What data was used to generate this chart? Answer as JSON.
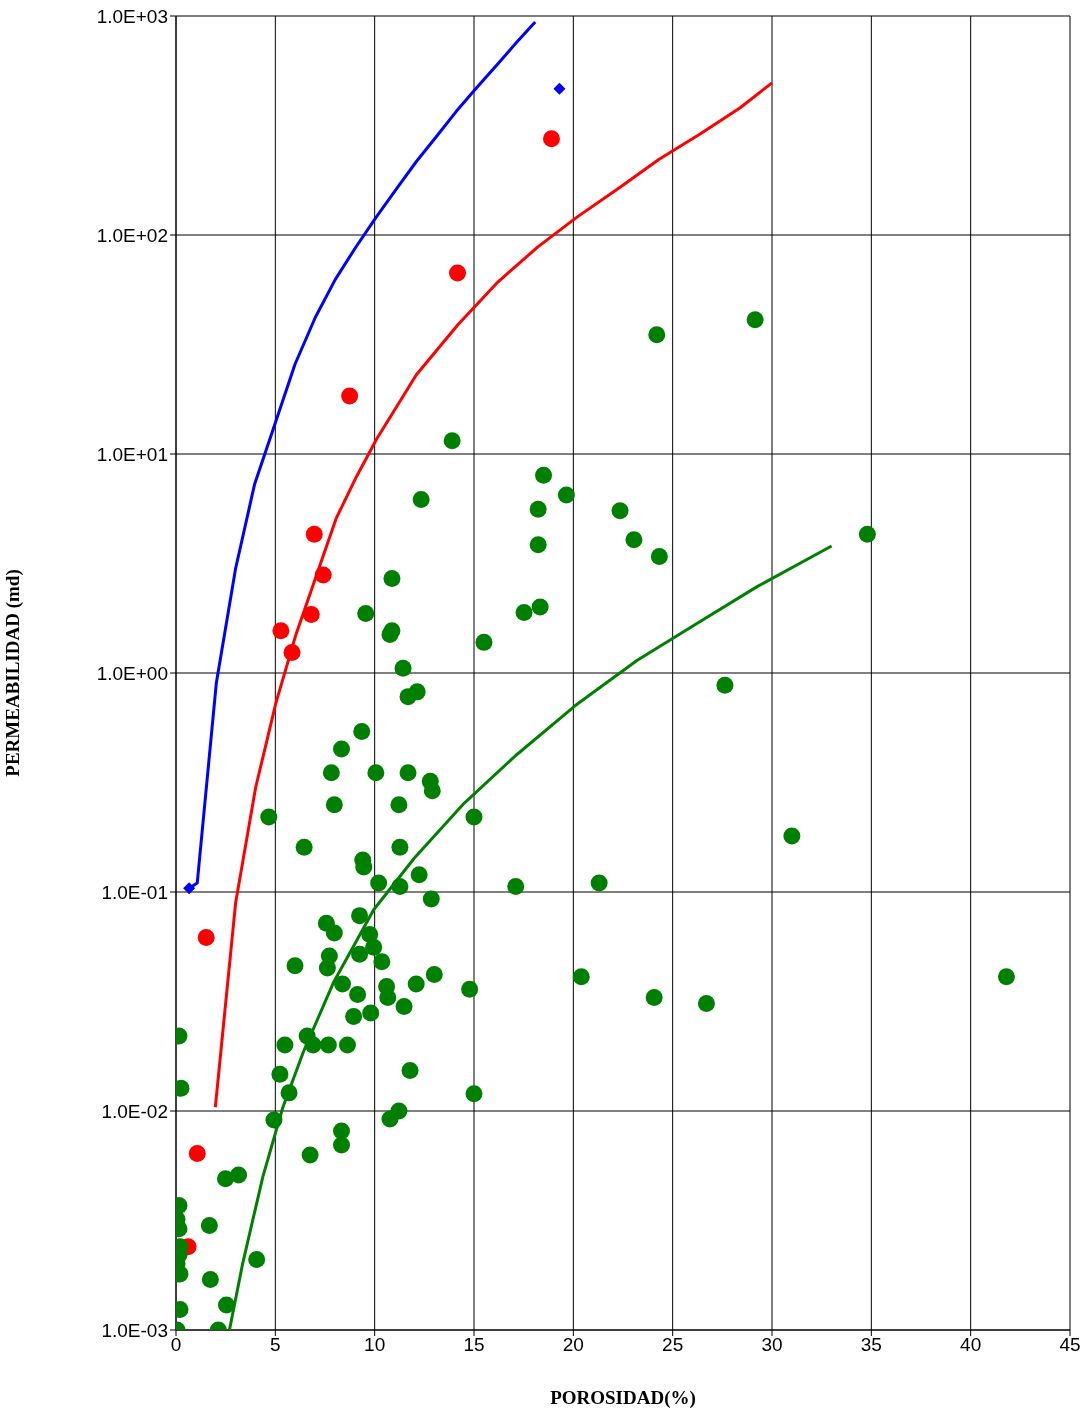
{
  "chart_data": {
    "type": "scatter",
    "xlabel": "POROSIDAD(%)",
    "ylabel": "PERMEABILIDAD (md)",
    "log": "y",
    "grid": true,
    "legend": false,
    "xlim": [
      0,
      45
    ],
    "xticks": [
      0,
      5,
      10,
      15,
      20,
      25,
      30,
      35,
      40,
      45
    ],
    "ylim": [
      0.001,
      1000
    ],
    "yticks": [
      {
        "value": 0.001,
        "label": "1.0E-03"
      },
      {
        "value": 0.01,
        "label": "1.0E-02"
      },
      {
        "value": 0.1,
        "label": "1.0E-01"
      },
      {
        "value": 1,
        "label": "1.0E+00"
      },
      {
        "value": 10,
        "label": "1.0E+01"
      },
      {
        "value": 100,
        "label": "1.0E+02"
      },
      {
        "value": 1000,
        "label": "1.0E+03"
      }
    ],
    "series": [
      {
        "type": "line",
        "color": "#0000ff",
        "marker": "none",
        "line_style": "solid",
        "x": [
          0.66,
          1.07,
          2.03,
          3.0,
          3.96,
          4.98,
          5.99,
          7.01,
          8.02,
          9.04,
          10.06,
          11.07,
          12.09,
          13.1,
          14.1,
          15.13,
          16.15,
          17.17,
          18.08
        ],
        "values": [
          0.104,
          0.11,
          0.9,
          3.0,
          7.3,
          13.7,
          25.7,
          42,
          62.7,
          87.7,
          120,
          161,
          216,
          281,
          366,
          470,
          598,
          762,
          940
        ]
      },
      {
        "color": "#0000ff",
        "marker": "diamond",
        "x": [
          0.66,
          19.3
        ],
        "values": [
          0.104,
          465
        ]
      },
      {
        "type": "line",
        "color": "#ff0000",
        "marker": "none",
        "line_style": "solid",
        "x": [
          1.98,
          3.0,
          4.01,
          5.03,
          6.04,
          8.07,
          9.09,
          10.1,
          12.1,
          14.2,
          16.2,
          18.2,
          20.2,
          22.3,
          24.3,
          26.4,
          28.4,
          30.0
        ],
        "values": [
          0.0104,
          0.089,
          0.3,
          0.73,
          1.5,
          5.1,
          7.9,
          11.7,
          23,
          39,
          61,
          88,
          121,
          164,
          221,
          290,
          381,
          495
        ]
      },
      {
        "color": "#ff0000",
        "marker": "circle",
        "x": [
          0.61,
          1.07,
          1.52,
          5.28,
          5.84,
          6.81,
          6.96,
          7.41,
          8.74,
          14.17,
          18.9
        ],
        "values": [
          0.0024,
          0.0064,
          0.062,
          1.56,
          1.24,
          1.85,
          4.3,
          2.8,
          18.4,
          67,
          275
        ]
      },
      {
        "type": "line",
        "color": "#008000",
        "marker": "none",
        "line_style": "solid",
        "x": [
          2.69,
          3.35,
          4.37,
          5.38,
          6.4,
          7.92,
          9.95,
          12.0,
          14.5,
          17.1,
          20.1,
          23.2,
          26.2,
          29.25,
          33.0
        ],
        "values": [
          0.001,
          0.002,
          0.005,
          0.0104,
          0.0185,
          0.0385,
          0.083,
          0.143,
          0.254,
          0.42,
          0.71,
          1.14,
          1.68,
          2.48,
          3.8
        ]
      },
      {
        "color": "#008000",
        "marker": "circle",
        "x": [
          24.2,
          29.15,
          13.9,
          18.5,
          19.65,
          12.34,
          18.23,
          22.35,
          23.05,
          18.23,
          24.33,
          34.8,
          10.87,
          9.55,
          17.52,
          18.33,
          10.77,
          10.87,
          15.5,
          11.43,
          11.68,
          12.14,
          27.63,
          9.35,
          8.33,
          7.82,
          10.06,
          11.68,
          12.8,
          12.9,
          7.97,
          11.22,
          4.67,
          15.0,
          6.45,
          11.27,
          31.0,
          9.4,
          9.45,
          10.2,
          12.24,
          11.27,
          17.1,
          21.3,
          12.85,
          7.57,
          9.24,
          7.97,
          9.75,
          9.95,
          5.99,
          7.62,
          7.72,
          9.24,
          10.36,
          20.4,
          13.0,
          41.8,
          8.38,
          12.09,
          10.6,
          9.14,
          10.66,
          14.78,
          24.07,
          26.7,
          11.48,
          8.94,
          9.8,
          0.15,
          6.6,
          5.48,
          6.9,
          7.67,
          8.63,
          0.25,
          5.23,
          5.69,
          11.78,
          15.0,
          4.93,
          10.77,
          11.22,
          8.33,
          8.33,
          6.75,
          2.49,
          3.15,
          1.68,
          0.15,
          0.05,
          0.15,
          0.2,
          0.15,
          0.05,
          0.2,
          1.73,
          4.06,
          2.54,
          0.2,
          0.05,
          2.13
        ],
        "values": [
          35,
          41,
          11.5,
          8.0,
          6.5,
          6.2,
          5.6,
          5.5,
          4.06,
          3.85,
          3.4,
          4.3,
          2.7,
          1.87,
          1.89,
          2.0,
          1.5,
          1.56,
          1.38,
          1.05,
          0.78,
          0.82,
          0.88,
          0.54,
          0.45,
          0.35,
          0.35,
          0.35,
          0.32,
          0.29,
          0.25,
          0.25,
          0.22,
          0.22,
          0.16,
          0.16,
          0.18,
          0.14,
          0.13,
          0.11,
          0.12,
          0.106,
          0.106,
          0.11,
          0.093,
          0.072,
          0.078,
          0.065,
          0.064,
          0.056,
          0.046,
          0.045,
          0.051,
          0.052,
          0.048,
          0.041,
          0.042,
          0.041,
          0.038,
          0.038,
          0.037,
          0.034,
          0.033,
          0.036,
          0.033,
          0.031,
          0.03,
          0.027,
          0.028,
          0.022,
          0.022,
          0.02,
          0.02,
          0.02,
          0.02,
          0.0127,
          0.0147,
          0.0121,
          0.0153,
          0.012,
          0.0091,
          0.0092,
          0.01,
          0.0081,
          0.007,
          0.0063,
          0.0049,
          0.0051,
          0.003,
          0.0037,
          0.0032,
          0.0029,
          0.0024,
          0.0022,
          0.002,
          0.0018,
          0.0017,
          0.0021,
          0.0013,
          0.00124,
          0.001,
          0.001
        ]
      }
    ]
  }
}
